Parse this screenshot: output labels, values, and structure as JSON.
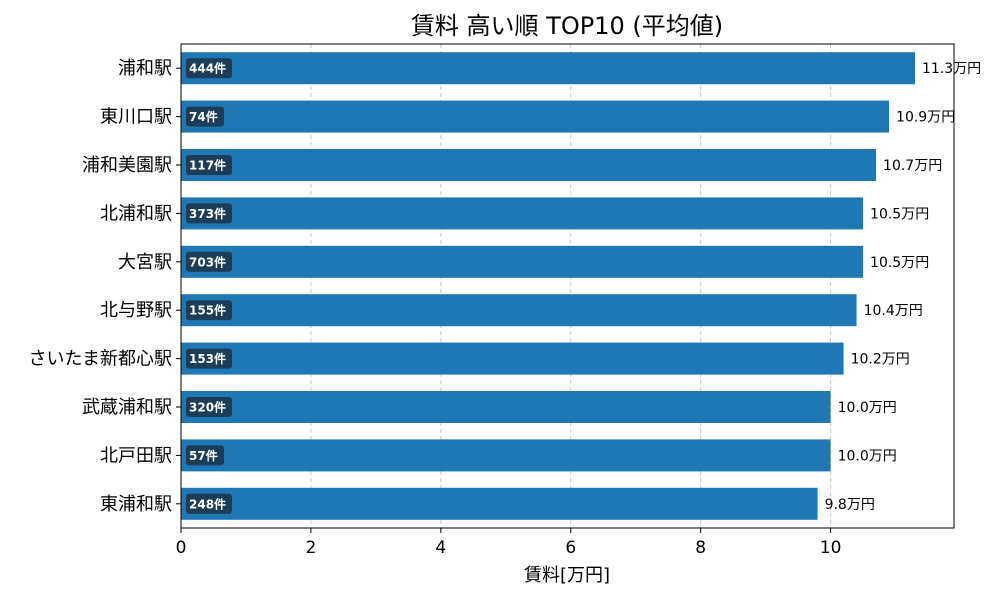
{
  "chart_data": {
    "type": "bar",
    "orientation": "horizontal",
    "title": "賃料 高い順 TOP10 (平均値)",
    "xlabel": "賃料[万円]",
    "ylabel": "",
    "xlim": [
      0,
      11.9
    ],
    "xticks": [
      0,
      2,
      4,
      6,
      8,
      10
    ],
    "grid": "x-dashed",
    "bar_color": "#1f77b4",
    "badge_color": "#1c3d5a",
    "value_suffix": "万円",
    "categories": [
      "浦和駅",
      "東川口駅",
      "浦和美園駅",
      "北浦和駅",
      "大宮駅",
      "北与野駅",
      "さいたま新都心駅",
      "武蔵浦和駅",
      "北戸田駅",
      "東浦和駅"
    ],
    "values": [
      11.3,
      10.9,
      10.7,
      10.5,
      10.5,
      10.4,
      10.2,
      10.0,
      10.0,
      9.8
    ],
    "value_labels": [
      "11.3万円",
      "10.9万円",
      "10.7万円",
      "10.5万円",
      "10.5万円",
      "10.4万円",
      "10.2万円",
      "10.0万円",
      "10.0万円",
      "9.8万円"
    ],
    "counts": [
      "444件",
      "74件",
      "117件",
      "373件",
      "703件",
      "155件",
      "153件",
      "320件",
      "57件",
      "248件"
    ]
  }
}
